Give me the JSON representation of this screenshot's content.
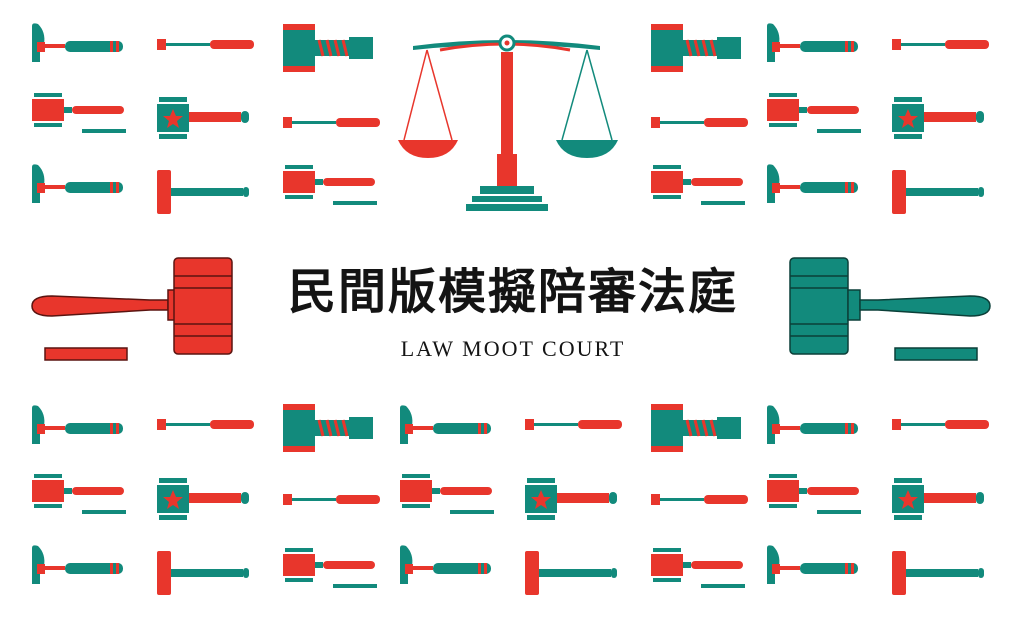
{
  "banner": {
    "title_zh": "民間版模擬陪審法庭",
    "title_en": "LAW MOOT COURT"
  },
  "colors": {
    "red": "#e8362c",
    "teal": "#128a7c",
    "dark": "#1c1c1c",
    "background": "#ffffff"
  },
  "icons": {
    "center": "scales-of-justice-icon",
    "left_feature": "gavel-icon",
    "right_feature": "gavel-icon",
    "pattern": [
      "claw-hammer-icon",
      "small-hammer-icon",
      "gavel-icon",
      "star-gavel-icon",
      "mallet-icon",
      "sledgehammer-icon"
    ]
  }
}
